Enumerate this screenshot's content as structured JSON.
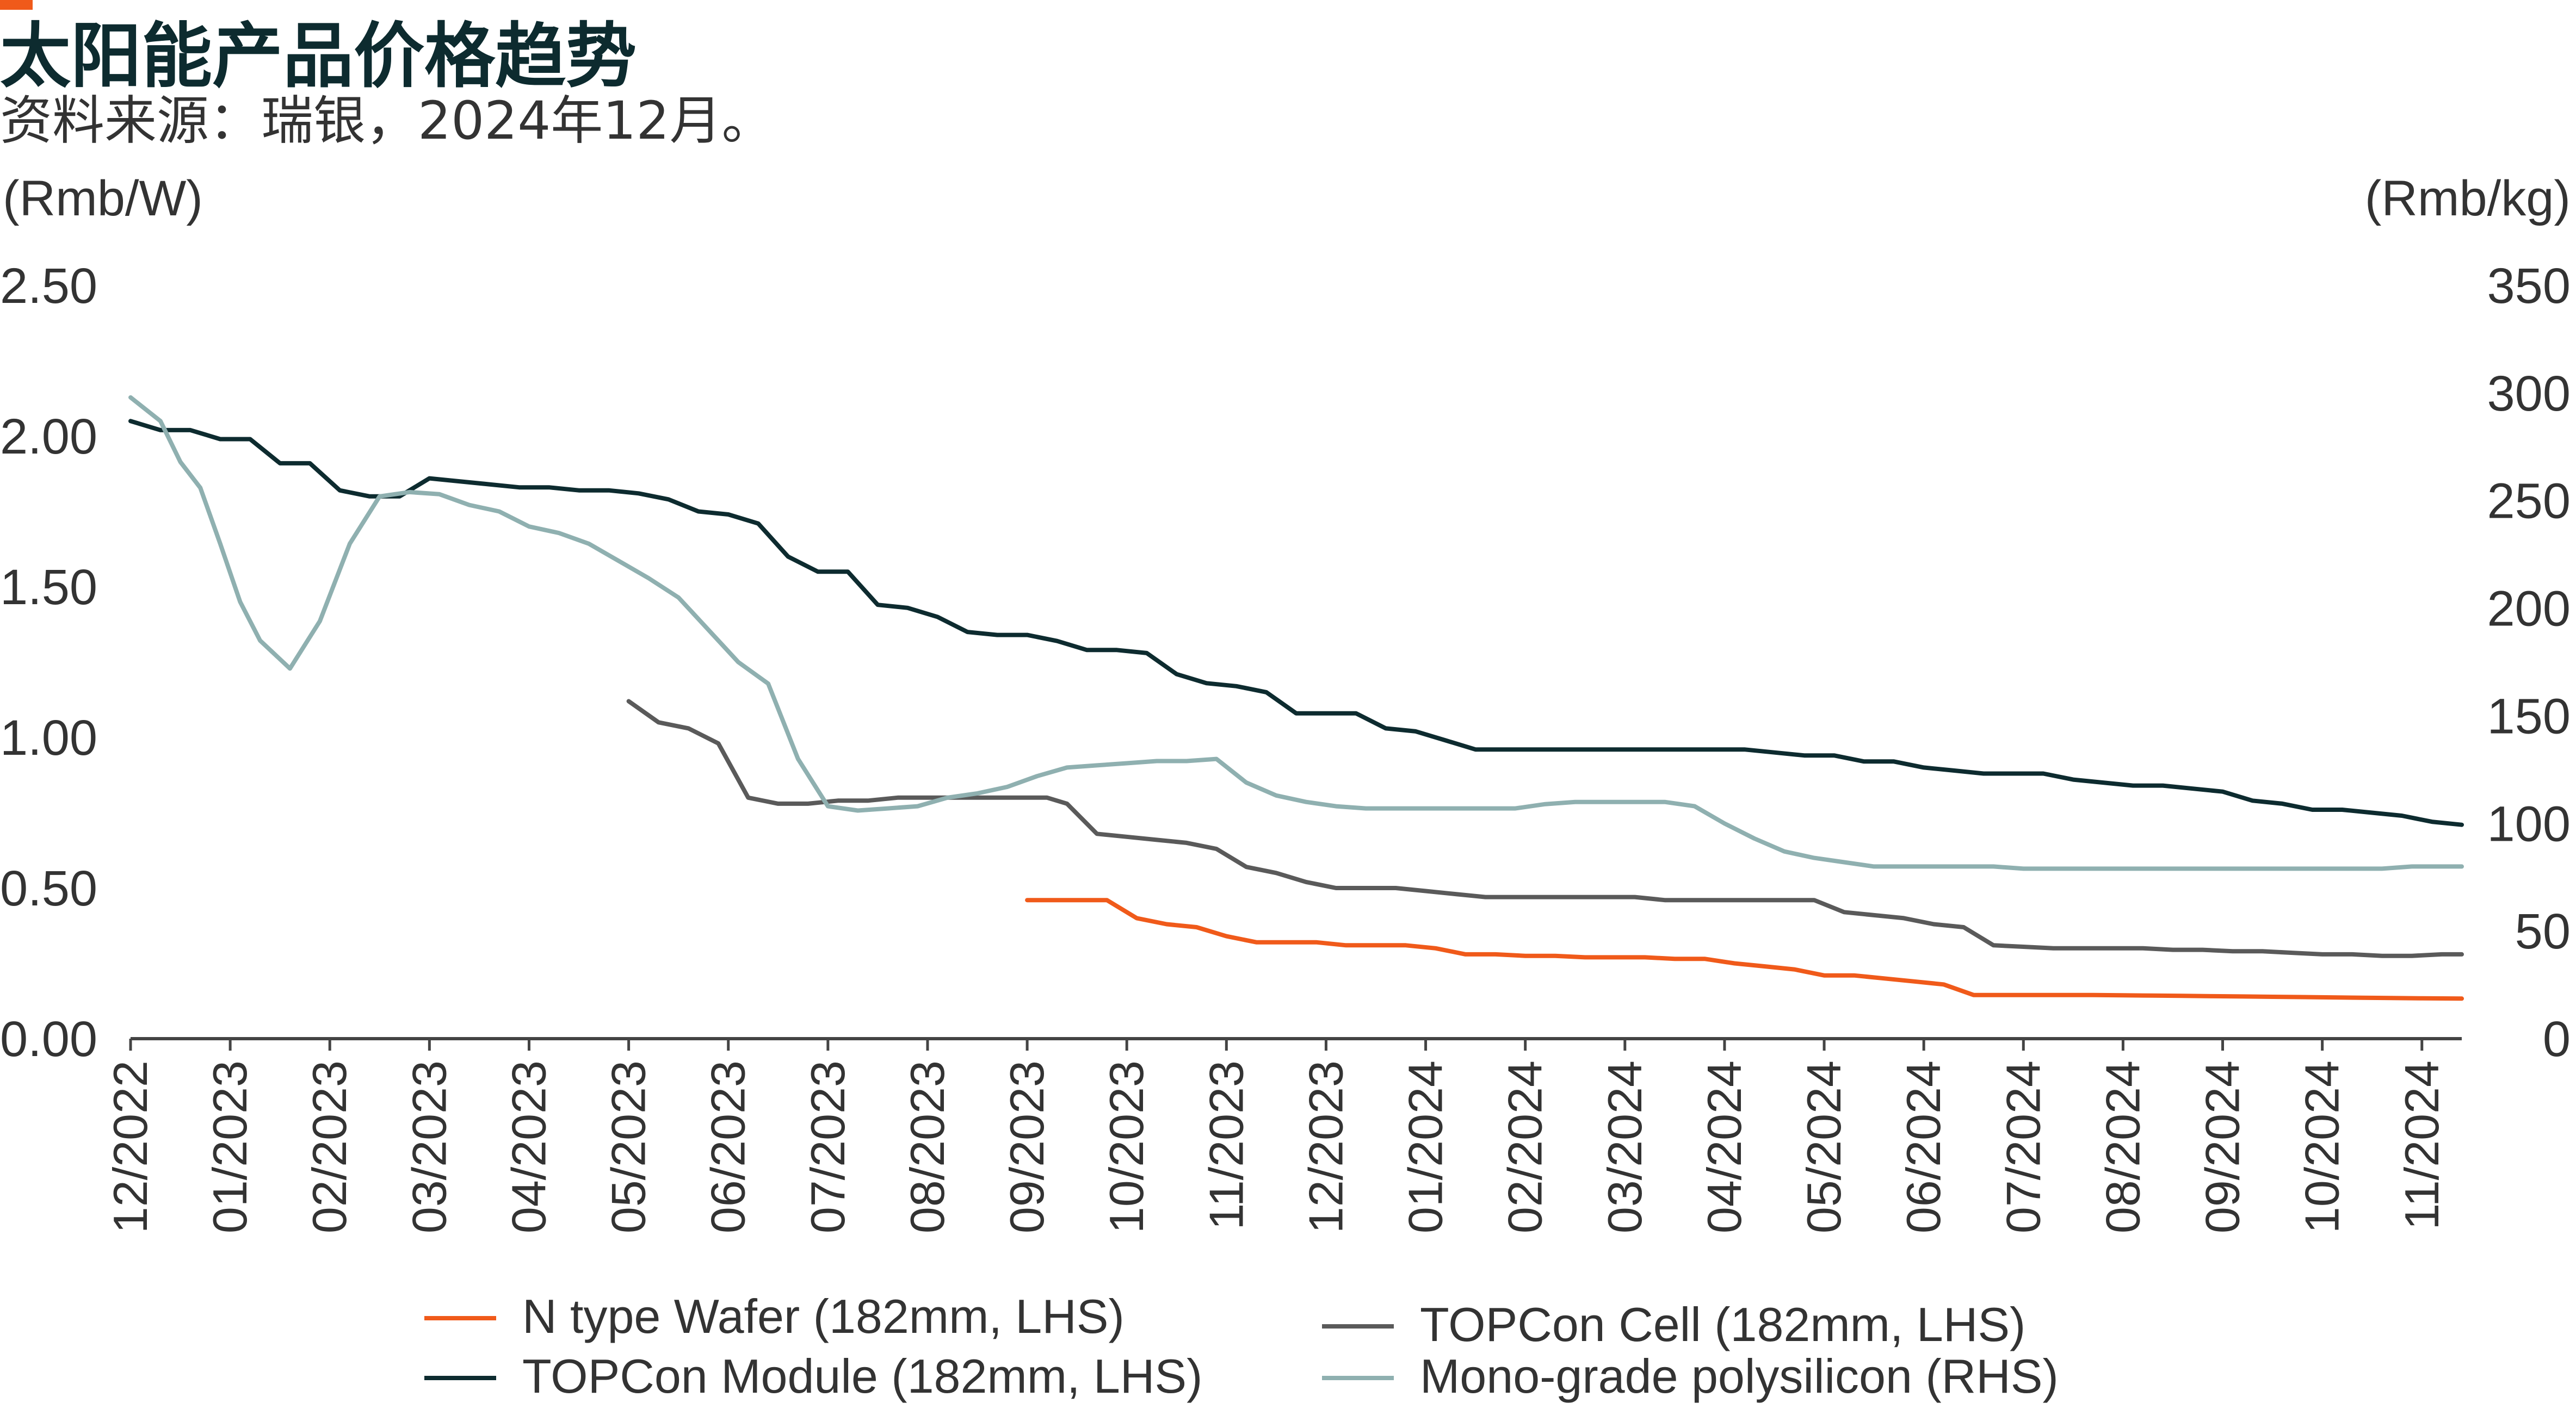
{
  "title": "太阳能产品价格趋势",
  "source": "资料来源：瑞银，2024年12月。",
  "colors": {
    "accent": "#f05a1a",
    "wafer": "#f05a1a",
    "cell": "#5a5a5a",
    "module": "#0d2b2f",
    "polysilicon": "#8fb0b0",
    "axis": "#444444"
  },
  "chart_data": {
    "type": "line",
    "xlabels": [
      "12/2022",
      "01/2023",
      "02/2023",
      "03/2023",
      "04/2023",
      "05/2023",
      "06/2023",
      "07/2023",
      "08/2023",
      "09/2023",
      "10/2023",
      "11/2023",
      "12/2023",
      "01/2024",
      "02/2024",
      "03/2024",
      "04/2024",
      "05/2024",
      "06/2024",
      "07/2024",
      "08/2024",
      "09/2024",
      "10/2024",
      "11/2024"
    ],
    "x_range": [
      0,
      23.4
    ],
    "left_axis": {
      "label": "(Rmb/W)",
      "ticks": [
        "0.00",
        "0.50",
        "1.00",
        "1.50",
        "2.00",
        "2.50"
      ],
      "ylim": [
        0,
        2.5
      ]
    },
    "right_axis": {
      "label": "(Rmb/kg)",
      "ticks": [
        "0",
        "50",
        "100",
        "150",
        "200",
        "250",
        "300",
        "350"
      ],
      "ylim": [
        0,
        350
      ]
    },
    "series": [
      {
        "name": "N type Wafer (182mm, LHS)",
        "axis": "left",
        "color": "#f05a1a",
        "x": [
          9.0,
          9.4,
          9.5,
          9.8,
          10.1,
          10.4,
          10.7,
          11.0,
          11.3,
          11.6,
          11.9,
          12.2,
          12.5,
          12.8,
          13.1,
          13.4,
          13.7,
          14.0,
          14.3,
          14.6,
          14.9,
          15.2,
          15.5,
          15.8,
          16.1,
          16.4,
          16.7,
          17.0,
          17.3,
          17.6,
          17.9,
          18.2,
          18.5,
          18.8,
          19.1,
          19.4,
          19.7,
          20.0,
          20.3,
          20.6,
          20.9,
          21.2,
          21.5,
          21.8,
          22.1,
          22.4,
          22.7,
          23.0,
          23.4
        ],
        "y": [
          0.46,
          0.46,
          0.46,
          0.46,
          0.4,
          0.38,
          0.37,
          0.34,
          0.32,
          0.32,
          0.32,
          0.31,
          0.31,
          0.31,
          0.3,
          0.28,
          0.28,
          0.275,
          0.275,
          0.27,
          0.27,
          0.27,
          0.265,
          0.265,
          0.25,
          0.24,
          0.23,
          0.21,
          0.21,
          0.2,
          0.19,
          0.18,
          0.145,
          0.145,
          0.145,
          0.145,
          0.145,
          0.144,
          0.143,
          0.142,
          0.141,
          0.14,
          0.139,
          0.138,
          0.137,
          0.136,
          0.135,
          0.134,
          0.133
        ]
      },
      {
        "name": "TOPCon Cell (182mm, LHS)",
        "axis": "left",
        "color": "#5a5a5a",
        "x": [
          5.0,
          5.3,
          5.6,
          5.9,
          6.2,
          6.5,
          6.8,
          7.1,
          7.4,
          7.7,
          8.0,
          8.3,
          8.6,
          8.9,
          9.2,
          9.4,
          9.7,
          10.0,
          10.3,
          10.6,
          10.9,
          11.2,
          11.5,
          11.8,
          12.1,
          12.4,
          12.7,
          13.0,
          13.3,
          13.6,
          13.9,
          14.2,
          14.5,
          14.8,
          15.1,
          15.4,
          15.7,
          16.0,
          16.3,
          16.6,
          16.9,
          17.2,
          17.5,
          17.8,
          18.1,
          18.4,
          18.7,
          19.0,
          19.3,
          19.6,
          19.9,
          20.2,
          20.5,
          20.8,
          21.1,
          21.4,
          21.7,
          22.0,
          22.3,
          22.6,
          22.9,
          23.2,
          23.4
        ],
        "y": [
          1.12,
          1.05,
          1.03,
          0.98,
          0.8,
          0.78,
          0.78,
          0.79,
          0.79,
          0.8,
          0.8,
          0.8,
          0.8,
          0.8,
          0.8,
          0.78,
          0.68,
          0.67,
          0.66,
          0.65,
          0.63,
          0.57,
          0.55,
          0.52,
          0.5,
          0.5,
          0.5,
          0.49,
          0.48,
          0.47,
          0.47,
          0.47,
          0.47,
          0.47,
          0.47,
          0.46,
          0.46,
          0.46,
          0.46,
          0.46,
          0.46,
          0.42,
          0.41,
          0.4,
          0.38,
          0.37,
          0.31,
          0.305,
          0.3,
          0.3,
          0.3,
          0.3,
          0.295,
          0.295,
          0.29,
          0.29,
          0.285,
          0.28,
          0.28,
          0.275,
          0.275,
          0.28,
          0.28
        ]
      },
      {
        "name": "TOPCon Module (182mm, LHS)",
        "axis": "left",
        "color": "#0d2b2f",
        "x": [
          0.0,
          0.3,
          0.6,
          0.9,
          1.2,
          1.5,
          1.8,
          2.1,
          2.4,
          2.7,
          3.0,
          3.3,
          3.6,
          3.9,
          4.2,
          4.5,
          4.8,
          5.1,
          5.4,
          5.7,
          6.0,
          6.3,
          6.6,
          6.9,
          7.2,
          7.5,
          7.8,
          8.1,
          8.4,
          8.7,
          9.0,
          9.3,
          9.6,
          9.9,
          10.2,
          10.5,
          10.8,
          11.1,
          11.4,
          11.7,
          12.0,
          12.3,
          12.6,
          12.9,
          13.2,
          13.5,
          13.8,
          14.1,
          14.4,
          14.7,
          15.0,
          15.3,
          15.6,
          15.9,
          16.2,
          16.5,
          16.8,
          17.1,
          17.4,
          17.7,
          18.0,
          18.3,
          18.6,
          18.9,
          19.2,
          19.5,
          19.8,
          20.1,
          20.4,
          20.7,
          21.0,
          21.3,
          21.6,
          21.9,
          22.2,
          22.5,
          22.8,
          23.1,
          23.4
        ],
        "y": [
          2.05,
          2.02,
          2.02,
          1.99,
          1.99,
          1.91,
          1.91,
          1.82,
          1.8,
          1.8,
          1.86,
          1.85,
          1.84,
          1.83,
          1.83,
          1.82,
          1.82,
          1.81,
          1.79,
          1.75,
          1.74,
          1.71,
          1.6,
          1.55,
          1.55,
          1.44,
          1.43,
          1.4,
          1.35,
          1.34,
          1.34,
          1.32,
          1.29,
          1.29,
          1.28,
          1.21,
          1.18,
          1.17,
          1.15,
          1.08,
          1.08,
          1.08,
          1.03,
          1.02,
          0.99,
          0.96,
          0.96,
          0.96,
          0.96,
          0.96,
          0.96,
          0.96,
          0.96,
          0.96,
          0.96,
          0.95,
          0.94,
          0.94,
          0.92,
          0.92,
          0.9,
          0.89,
          0.88,
          0.88,
          0.88,
          0.86,
          0.85,
          0.84,
          0.84,
          0.83,
          0.82,
          0.79,
          0.78,
          0.76,
          0.76,
          0.75,
          0.74,
          0.72,
          0.71
        ]
      },
      {
        "name": "Mono-grade polysilicon (RHS)",
        "axis": "right",
        "color": "#8fb0b0",
        "x": [
          0.0,
          0.3,
          0.5,
          0.7,
          0.9,
          1.1,
          1.3,
          1.6,
          1.9,
          2.2,
          2.5,
          2.8,
          3.1,
          3.4,
          3.7,
          4.0,
          4.3,
          4.6,
          4.9,
          5.2,
          5.5,
          5.8,
          6.1,
          6.4,
          6.7,
          7.0,
          7.3,
          7.6,
          7.9,
          8.2,
          8.5,
          8.8,
          9.1,
          9.4,
          9.7,
          10.0,
          10.3,
          10.6,
          10.9,
          11.2,
          11.5,
          11.8,
          12.1,
          12.4,
          12.7,
          13.0,
          13.3,
          13.6,
          13.9,
          14.2,
          14.5,
          14.8,
          15.1,
          15.4,
          15.7,
          16.0,
          16.3,
          16.6,
          16.9,
          17.2,
          17.5,
          17.8,
          18.1,
          18.4,
          18.7,
          19.0,
          19.3,
          19.6,
          19.9,
          20.2,
          20.5,
          20.8,
          21.1,
          21.4,
          21.7,
          22.0,
          22.3,
          22.6,
          22.9,
          23.2,
          23.4
        ],
        "y": [
          298,
          287,
          268,
          256,
          230,
          203,
          185,
          172,
          194,
          230,
          252,
          254,
          253,
          248,
          245,
          238,
          235,
          230,
          222,
          214,
          205,
          190,
          175,
          165,
          130,
          108,
          106,
          107,
          108,
          112,
          114,
          117,
          122,
          126,
          127,
          128,
          129,
          129,
          130,
          119,
          113,
          110,
          108,
          107,
          107,
          107,
          107,
          107,
          107,
          109,
          110,
          110,
          110,
          110,
          108,
          100,
          93,
          87,
          84,
          82,
          80,
          80,
          80,
          80,
          80,
          79,
          79,
          79,
          79,
          79,
          79,
          79,
          79,
          79,
          79,
          79,
          79,
          79,
          80,
          80,
          80
        ]
      }
    ]
  }
}
